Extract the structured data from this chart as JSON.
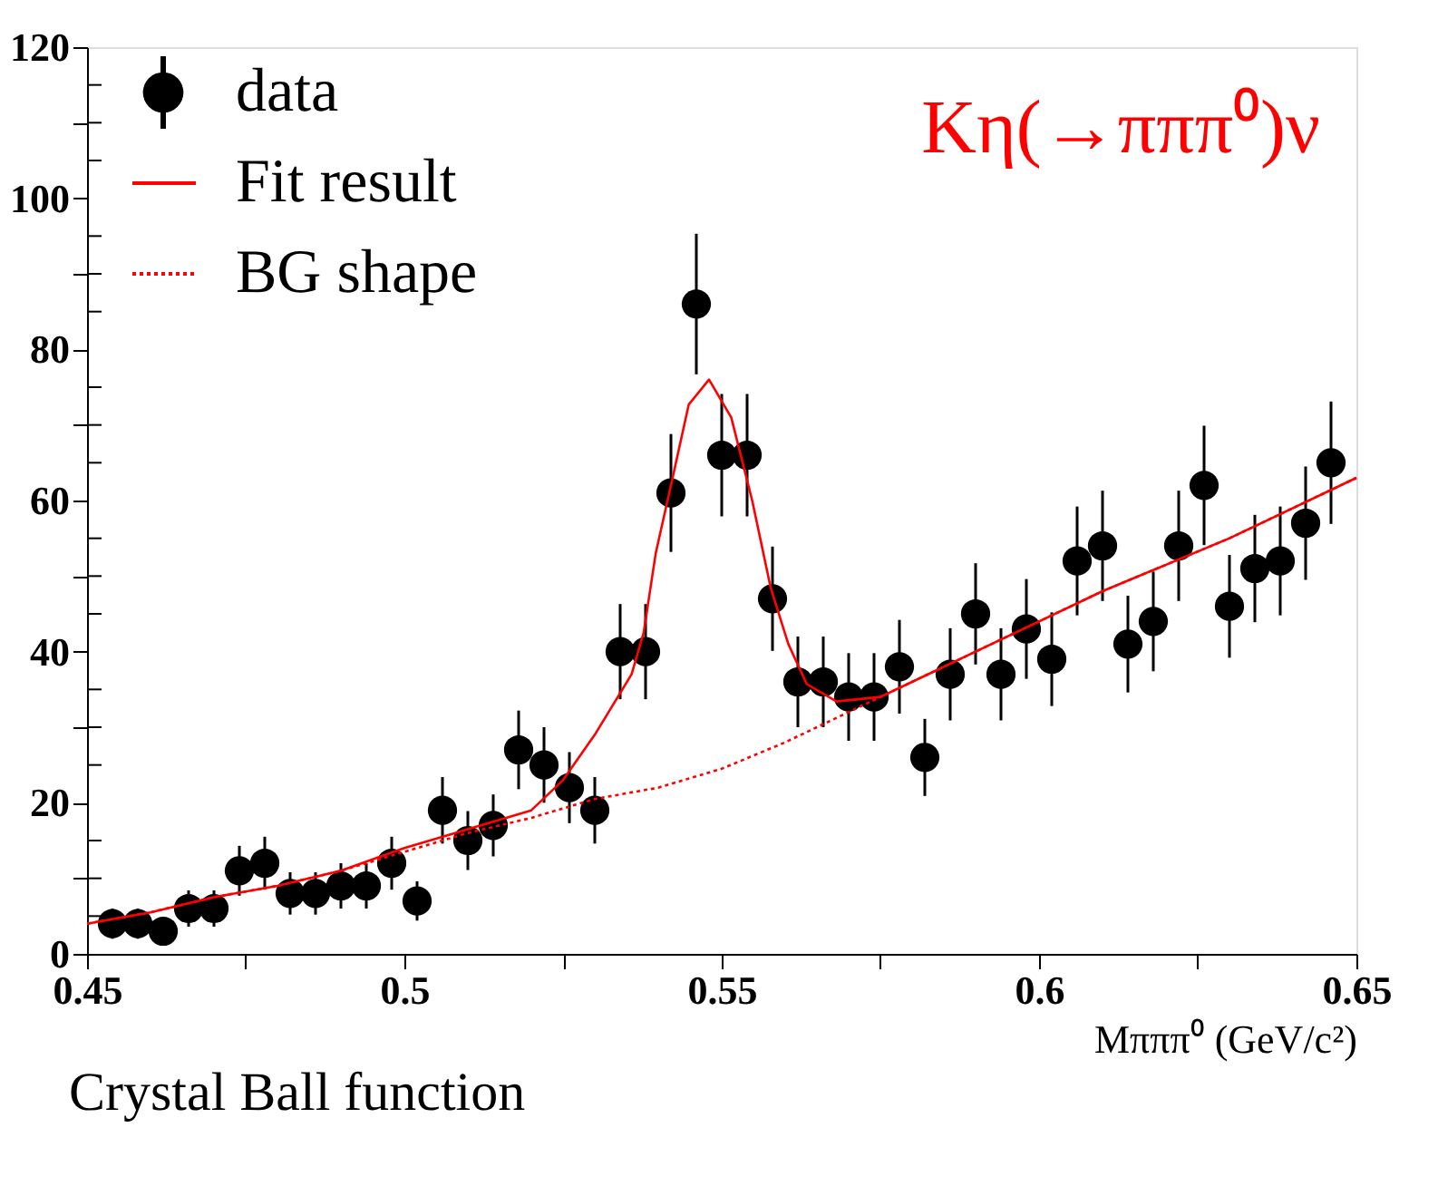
{
  "chart_data": {
    "type": "scatter",
    "xlabel": "Mπππ⁰ (GeV/c²)",
    "annotations": [
      "Kη(→πππ⁰)ν",
      "Crystal Ball function"
    ],
    "x": [
      0.454,
      0.458,
      0.462,
      0.466,
      0.47,
      0.474,
      0.478,
      0.482,
      0.486,
      0.49,
      0.494,
      0.498,
      0.502,
      0.506,
      0.51,
      0.514,
      0.518,
      0.522,
      0.526,
      0.53,
      0.534,
      0.538,
      0.542,
      0.546,
      0.55,
      0.554,
      0.558,
      0.562,
      0.566,
      0.57,
      0.574,
      0.578,
      0.582,
      0.586,
      0.59,
      0.594,
      0.598,
      0.602,
      0.606,
      0.61,
      0.614,
      0.618,
      0.622,
      0.626,
      0.63,
      0.634,
      0.638,
      0.642,
      0.646
    ],
    "series": [
      {
        "name": "data",
        "marker": "circle",
        "color": "#000000",
        "values": [
          4,
          4,
          3,
          6,
          6,
          11,
          12,
          8,
          8,
          9,
          9,
          12,
          7,
          19,
          15,
          17,
          27,
          25,
          22,
          19,
          40,
          40,
          61,
          86,
          66,
          66,
          47,
          36,
          36,
          34,
          34,
          38,
          26,
          37,
          45,
          37,
          43,
          39,
          52,
          54,
          41,
          44,
          54,
          62,
          46,
          51,
          52,
          57,
          65
        ],
        "errors": [
          2,
          2,
          1.7,
          2.4,
          2.4,
          3.3,
          3.5,
          2.8,
          2.8,
          3,
          3,
          3.5,
          2.6,
          4.4,
          3.9,
          4.1,
          5.2,
          5,
          4.7,
          4.4,
          6.3,
          6.3,
          7.8,
          9.3,
          8.1,
          8.1,
          6.9,
          6,
          6,
          5.8,
          5.8,
          6.2,
          5.1,
          6.1,
          6.7,
          6.1,
          6.6,
          6.2,
          7.2,
          7.3,
          6.4,
          6.6,
          7.3,
          7.9,
          6.8,
          7.1,
          7.2,
          7.5,
          8.1
        ]
      },
      {
        "name": "Fit result",
        "type": "line",
        "line_style": "solid",
        "color": "#ff0000",
        "x": [
          0.45,
          0.46,
          0.47,
          0.48,
          0.49,
          0.5,
          0.51,
          0.52,
          0.525,
          0.53,
          0.5358,
          0.5377,
          0.5396,
          0.542,
          0.5448,
          0.548,
          0.5515,
          0.5548,
          0.5577,
          0.5605,
          0.5634,
          0.5681,
          0.575,
          0.58,
          0.59,
          0.6,
          0.61,
          0.62,
          0.63,
          0.64,
          0.65
        ],
        "values": [
          4,
          5.5,
          7.5,
          9,
          11,
          14,
          16.5,
          19,
          23,
          29,
          37,
          42.5,
          53,
          62,
          72.7,
          76,
          71,
          60,
          48.5,
          41,
          35.7,
          33.4,
          34,
          36,
          40,
          44,
          48,
          51.5,
          55,
          59,
          63
        ]
      },
      {
        "name": "BG shape",
        "type": "line",
        "line_style": "dotted",
        "color": "#ff0000",
        "x": [
          0.45,
          0.46,
          0.47,
          0.48,
          0.49,
          0.5,
          0.51,
          0.52,
          0.53,
          0.54,
          0.55,
          0.56,
          0.57,
          0.58,
          0.59,
          0.6,
          0.61,
          0.62,
          0.63,
          0.64,
          0.65
        ],
        "values": [
          4,
          5.5,
          7.5,
          9,
          11,
          13.5,
          16,
          18,
          20.5,
          22,
          24.5,
          28,
          32,
          36,
          40,
          44,
          48,
          51.5,
          55,
          59,
          63
        ]
      }
    ],
    "xlim": [
      0.45,
      0.65
    ],
    "xticks": [
      0.45,
      {
        "value": 0.475,
        "label": null
      },
      0.5,
      {
        "value": 0.525,
        "label": null
      },
      0.55,
      {
        "value": 0.575,
        "label": null
      },
      0.6,
      {
        "value": 0.625,
        "label": null
      },
      0.65
    ],
    "ylim": [
      0,
      120
    ],
    "yticks": [
      0,
      {
        "value": 5,
        "label": null
      },
      {
        "value": 10,
        "label": null
      },
      {
        "value": 15,
        "label": null
      },
      20,
      {
        "value": 25,
        "label": null
      },
      {
        "value": 30,
        "label": null
      },
      {
        "value": 35,
        "label": null
      },
      40,
      {
        "value": 45,
        "label": null
      },
      {
        "value": 50,
        "label": null
      },
      {
        "value": 55,
        "label": null
      },
      60,
      {
        "value": 65,
        "label": null
      },
      {
        "value": 70,
        "label": null
      },
      {
        "value": 75,
        "label": null
      },
      80,
      {
        "value": 85,
        "label": null
      },
      {
        "value": 90,
        "label": null
      },
      {
        "value": 95,
        "label": null
      },
      100,
      {
        "value": 105,
        "label": null
      },
      {
        "value": 110,
        "label": null
      },
      {
        "value": 115,
        "label": null
      },
      120
    ],
    "grid": false,
    "legend": "top left"
  }
}
